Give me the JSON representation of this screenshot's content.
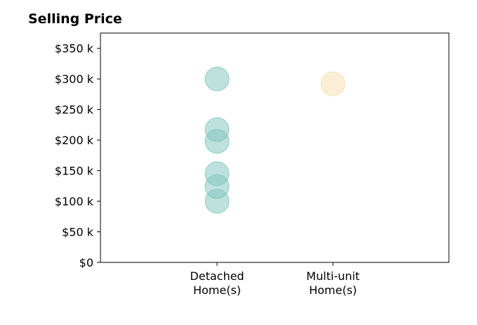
{
  "chart_data": {
    "type": "scatter",
    "title": "Selling Price",
    "xlabel": "",
    "ylabel": "",
    "categories": [
      [
        "Detached",
        "Home(s)"
      ],
      [
        "Multi-unit",
        "Home(s)"
      ]
    ],
    "ylim": [
      0,
      375000
    ],
    "y_ticks": [
      0,
      50000,
      100000,
      150000,
      200000,
      250000,
      300000,
      350000
    ],
    "y_tick_labels": [
      "$0",
      "$50 k",
      "$100 k",
      "$150 k",
      "$200 k",
      "$250 k",
      "$300 k",
      "$350 k"
    ],
    "grid": false,
    "series": [
      {
        "category_index": 0,
        "color": "#7ec4bb",
        "values": [
          300000,
          217000,
          198000,
          145000,
          124000,
          100000
        ]
      },
      {
        "category_index": 1,
        "color": "#f5deaa",
        "values": [
          292000
        ]
      }
    ]
  }
}
